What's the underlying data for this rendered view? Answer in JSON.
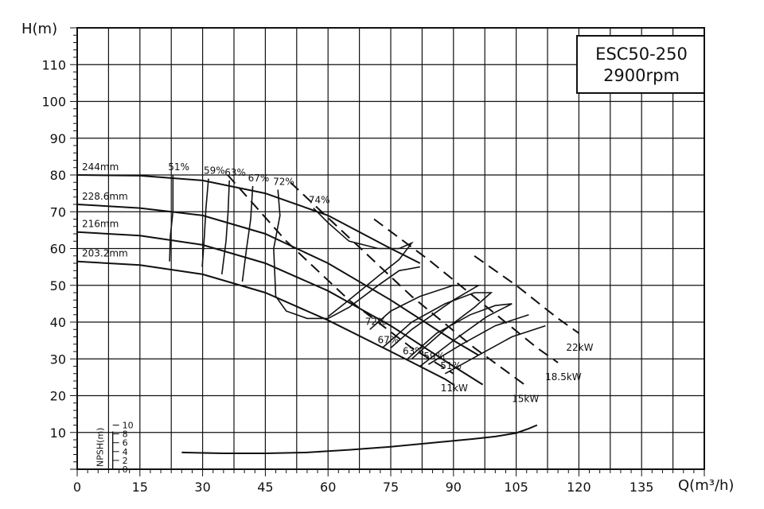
{
  "chart_data": {
    "type": "line",
    "title_box": {
      "model": "ESC50-250",
      "speed": "2900rpm"
    },
    "x_axis": {
      "label": "Q(m³/h)",
      "range": [
        0,
        150
      ],
      "ticks": [
        0,
        15,
        30,
        45,
        60,
        75,
        90,
        105,
        120,
        135
      ]
    },
    "y_axis": {
      "label": "H(m)",
      "range": [
        0,
        120
      ],
      "ticks": [
        10,
        20,
        30,
        40,
        50,
        60,
        70,
        80,
        90,
        100,
        110
      ]
    },
    "grid": true,
    "head_curves": [
      {
        "label": "244mm",
        "points": [
          [
            0,
            80
          ],
          [
            15,
            79.8
          ],
          [
            30,
            78.5
          ],
          [
            45,
            75
          ],
          [
            60,
            69
          ],
          [
            75,
            60
          ],
          [
            82,
            56
          ]
        ]
      },
      {
        "label": "228.6mm",
        "points": [
          [
            0,
            72
          ],
          [
            15,
            71
          ],
          [
            30,
            69
          ],
          [
            45,
            64
          ],
          [
            60,
            56
          ],
          [
            75,
            46
          ],
          [
            90,
            35
          ],
          [
            96,
            31
          ]
        ]
      },
      {
        "label": "216mm",
        "points": [
          [
            0,
            64.5
          ],
          [
            15,
            63.5
          ],
          [
            30,
            61
          ],
          [
            45,
            56
          ],
          [
            60,
            48.5
          ],
          [
            75,
            39
          ],
          [
            90,
            28
          ],
          [
            97,
            23
          ]
        ]
      },
      {
        "label": "203.2mm",
        "points": [
          [
            0,
            56.5
          ],
          [
            15,
            55.5
          ],
          [
            30,
            53
          ],
          [
            45,
            48
          ],
          [
            60,
            40.5
          ],
          [
            75,
            32
          ],
          [
            88,
            24.5
          ],
          [
            90,
            23
          ]
        ]
      }
    ],
    "efficiency_curves": [
      {
        "label": "51%",
        "points": [
          [
            22.9,
            80
          ],
          [
            22.9,
            70
          ],
          [
            22.3,
            63.5
          ],
          [
            22.1,
            56.5
          ]
        ]
      },
      {
        "label": "59%",
        "points": [
          [
            31.4,
            79
          ],
          [
            30.8,
            71
          ],
          [
            30.4,
            63
          ],
          [
            29.9,
            55
          ]
        ]
      },
      {
        "label": "63%",
        "points": [
          [
            36.4,
            78.5
          ],
          [
            36.1,
            70
          ],
          [
            35.6,
            62
          ],
          [
            34.6,
            53
          ]
        ]
      },
      {
        "label": "67%",
        "points": [
          [
            42,
            77
          ],
          [
            41.5,
            68
          ],
          [
            40.5,
            60
          ],
          [
            39.5,
            51
          ]
        ]
      },
      {
        "label": "72%",
        "points": [
          [
            48,
            76
          ],
          [
            48.5,
            69
          ],
          [
            47,
            60
          ],
          [
            47.5,
            47
          ],
          [
            50,
            43
          ],
          [
            55,
            41
          ],
          [
            60,
            41
          ],
          [
            65,
            44
          ],
          [
            72,
            50
          ],
          [
            77,
            54
          ],
          [
            82,
            55
          ]
        ]
      },
      {
        "label": "74%",
        "points": [
          [
            56.5,
            71
          ],
          [
            60,
            67
          ],
          [
            65,
            62
          ],
          [
            72,
            60
          ],
          [
            77,
            60
          ],
          [
            80,
            61.5
          ],
          [
            77,
            57
          ],
          [
            72,
            52.5
          ],
          [
            65,
            46
          ],
          [
            60,
            41.5
          ]
        ]
      },
      {
        "label": "72%",
        "points": [
          [
            70,
            38
          ],
          [
            75,
            43
          ],
          [
            82,
            47
          ],
          [
            90,
            50
          ],
          [
            96,
            50
          ],
          [
            90,
            46
          ],
          [
            80,
            38
          ],
          [
            75,
            33
          ]
        ]
      },
      {
        "label": "67%",
        "points": [
          [
            73,
            33
          ],
          [
            80,
            40
          ],
          [
            88,
            45
          ],
          [
            95,
            48
          ],
          [
            99,
            48
          ],
          [
            95,
            44
          ],
          [
            88,
            38
          ],
          [
            80,
            30
          ]
        ]
      },
      {
        "label": "63%",
        "points": [
          [
            79,
            30
          ],
          [
            86,
            37
          ],
          [
            94,
            42
          ],
          [
            100,
            44.5
          ],
          [
            104,
            45
          ],
          [
            98,
            41.5
          ],
          [
            90,
            35
          ],
          [
            82,
            28
          ]
        ]
      },
      {
        "label": "59%",
        "points": [
          [
            84,
            28.5
          ],
          [
            92,
            34
          ],
          [
            100,
            39
          ],
          [
            108,
            42
          ]
        ]
      },
      {
        "label": "51%",
        "points": [
          [
            88,
            26
          ],
          [
            96,
            31
          ],
          [
            104,
            36
          ],
          [
            112,
            39
          ]
        ]
      }
    ],
    "power_curves": [
      {
        "label": "11kW",
        "points": [
          [
            36,
            80
          ],
          [
            50,
            62
          ],
          [
            65,
            46
          ],
          [
            80,
            33
          ],
          [
            90,
            26
          ]
        ]
      },
      {
        "label": "15kW",
        "points": [
          [
            51,
            78
          ],
          [
            65,
            63
          ],
          [
            80,
            47
          ],
          [
            95,
            33
          ],
          [
            107,
            23
          ]
        ]
      },
      {
        "label": "18.5kW",
        "points": [
          [
            71,
            68
          ],
          [
            84,
            57
          ],
          [
            97,
            45
          ],
          [
            110,
            33
          ],
          [
            115,
            29
          ]
        ]
      },
      {
        "label": "22kW",
        "points": [
          [
            95,
            58
          ],
          [
            105,
            50
          ],
          [
            115,
            41
          ],
          [
            120,
            37
          ]
        ]
      }
    ],
    "npsh": {
      "axis_label": "NPSH(m)",
      "ticks": [
        0,
        2,
        4,
        6,
        8,
        10
      ],
      "range": [
        0,
        10
      ],
      "curve": [
        [
          25,
          3.8
        ],
        [
          35,
          3.6
        ],
        [
          45,
          3.6
        ],
        [
          55,
          3.8
        ],
        [
          65,
          4.4
        ],
        [
          75,
          5.1
        ],
        [
          85,
          6.0
        ],
        [
          95,
          6.9
        ],
        [
          100,
          7.4
        ],
        [
          105,
          8.2
        ],
        [
          108,
          9.2
        ],
        [
          110,
          10
        ]
      ]
    }
  }
}
